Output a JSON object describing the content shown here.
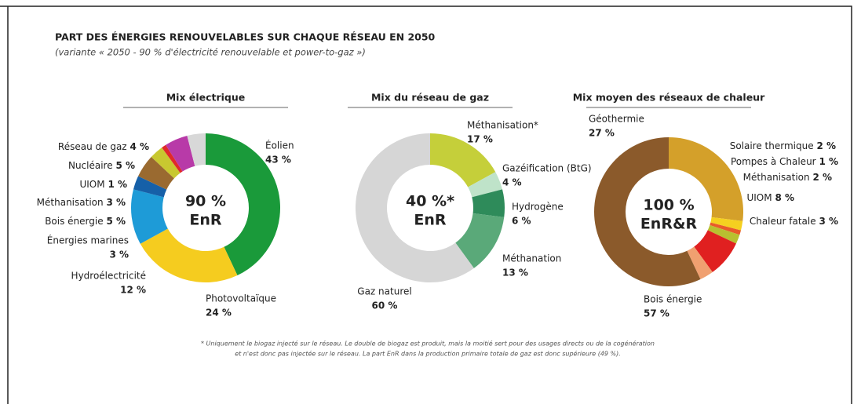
{
  "title": "PART DES ÉNERGIES RENOUVELABLES SUR CHAQUE RÉSEAU EN 2050",
  "subtitle": "(variante « 2050 - 90 % d'électricité renouvelable et power-to-gaz »)",
  "footnote": [
    "* Uniquement le biogaz injecté sur le réseau. Le double de biogaz est produit, mais la moitié sert pour des usages directs ou de la cogénération",
    "et n'est donc pas injectée sur le réseau. La part EnR dans la production primaire totale de gaz est donc supérieure (49 %)."
  ],
  "chart_data": [
    {
      "type": "pie",
      "title": "Mix électrique",
      "center": [
        "90 %",
        "EnR"
      ],
      "categories": [
        "Éolien",
        "Photovoltaïque",
        "Hydroélectricité",
        "Énergies marines",
        "Bois énergie",
        "Méthanisation",
        "UIOM",
        "Nucléaire",
        "Réseau de gaz"
      ],
      "values": [
        43,
        24,
        12,
        3,
        5,
        3,
        1,
        5,
        4
      ],
      "value_labels": [
        "43 %",
        "24 %",
        "12 %",
        "3 %",
        "5 %",
        "3 %",
        "1 %",
        "5 %",
        "4 %"
      ],
      "colors": [
        "#1a9a3a",
        "#f5cc1f",
        "#1e9bd7",
        "#1660a8",
        "#9a6a30",
        "#c8c830",
        "#e02a2a",
        "#b83aa8",
        "#d8d8d8"
      ]
    },
    {
      "type": "pie",
      "title": "Mix du réseau de gaz",
      "center": [
        "40 %*",
        "EnR"
      ],
      "categories": [
        "Méthanisation*",
        "Gazéification (BtG)",
        "Hydrogène",
        "Méthanation",
        "Gaz naturel"
      ],
      "values": [
        17,
        4,
        6,
        13,
        60
      ],
      "value_labels": [
        "17 %",
        "4 %",
        "6 %",
        "13 %",
        "60 %"
      ],
      "colors": [
        "#c5cf3a",
        "#bfe3c9",
        "#2e8b5a",
        "#5aa979",
        "#d6d6d6"
      ]
    },
    {
      "type": "pie",
      "title": "Mix moyen des réseaux de chaleur",
      "center": [
        "100 %",
        "EnR&R"
      ],
      "categories": [
        "Géothermie",
        "Solaire thermique",
        "Pompes à Chaleur",
        "Méthanisation",
        "UIOM",
        "Chaleur fatale",
        "Bois énergie"
      ],
      "values": [
        27,
        2,
        1,
        2,
        8,
        3,
        57
      ],
      "value_labels": [
        "27 %",
        "2 %",
        "1 %",
        "2 %",
        "8 %",
        "3 %",
        "57 %"
      ],
      "colors": [
        "#d4a02a",
        "#f5d020",
        "#e85a2a",
        "#b8c030",
        "#e02020",
        "#f0a070",
        "#8b5a2b"
      ]
    }
  ]
}
